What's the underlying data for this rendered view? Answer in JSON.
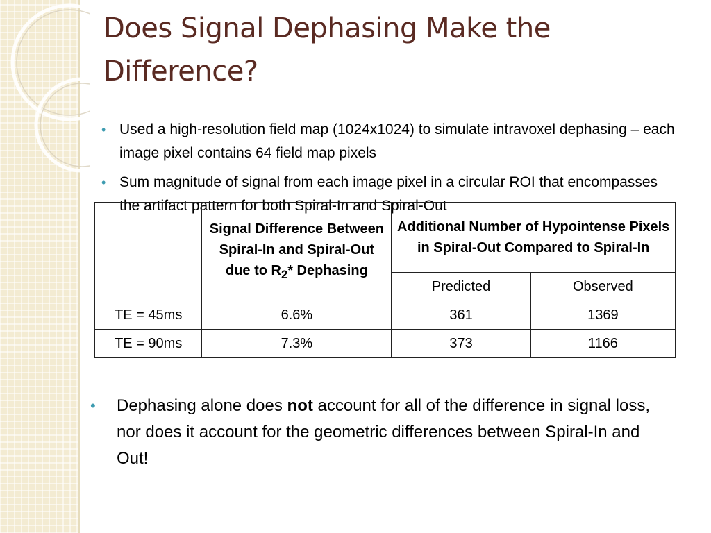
{
  "slide": {
    "title": "Does Signal Dephasing Make the Difference?",
    "bullets": [
      "Used a high-resolution field map (1024x1024) to simulate intravoxel dephasing – each image pixel contains 64 field map pixels",
      "Sum magnitude of signal from each image pixel in a circular ROI that encompasses the artifact pattern for both Spiral-In and Spiral-Out"
    ],
    "bullet_glyph": "•",
    "accent_color": "#3d9bb0",
    "title_color": "#5a2a22"
  },
  "table": {
    "header_signal_prefix": "Signal Difference Between Spiral-In and Spiral-Out due to R",
    "header_signal_sub": "2",
    "header_signal_suffix": "* Dephasing",
    "header_additional": "Additional Number of Hypointense Pixels in Spiral-Out Compared to Spiral-In",
    "header_predicted": "Predicted",
    "header_observed": "Observed",
    "rows": [
      {
        "te": "TE = 45ms",
        "signal": "6.6%",
        "predicted": "361",
        "observed": "1369"
      },
      {
        "te": "TE = 90ms",
        "signal": "7.3%",
        "predicted": "373",
        "observed": "1166"
      }
    ]
  },
  "conclusion": {
    "before": "Dephasing alone does ",
    "bold": "not",
    "after": " account for all of the difference in signal loss, nor does it account for the geometric differences between Spiral-In and Out!"
  }
}
